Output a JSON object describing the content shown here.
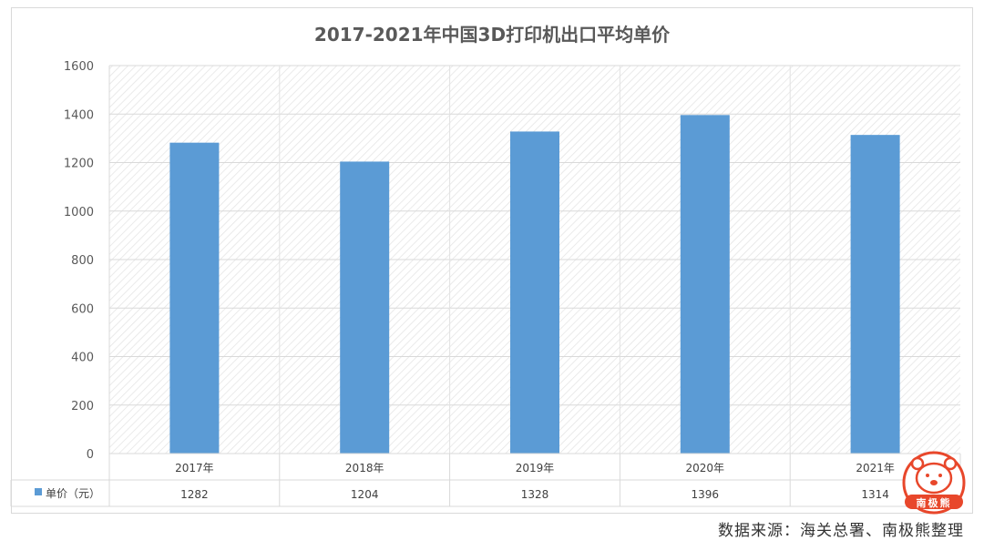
{
  "chart_data": {
    "type": "bar",
    "title": "2017-2021年中国3D打印机出口平均单价",
    "categories": [
      "2017年",
      "2018年",
      "2019年",
      "2020年",
      "2021年"
    ],
    "series": [
      {
        "name": "单价（元）",
        "values": [
          1282,
          1204,
          1328,
          1396,
          1314
        ]
      }
    ],
    "ylim": [
      0,
      1600
    ],
    "yticks": [
      0,
      200,
      400,
      600,
      800,
      1000,
      1200,
      1400,
      1600
    ],
    "data_table": true,
    "grid": true,
    "bar_color": "#5b9bd5"
  },
  "footer": {
    "source": "数据来源：海关总署、南极熊整理"
  },
  "logo": {
    "text": "南极熊",
    "color": "#e8472b"
  }
}
